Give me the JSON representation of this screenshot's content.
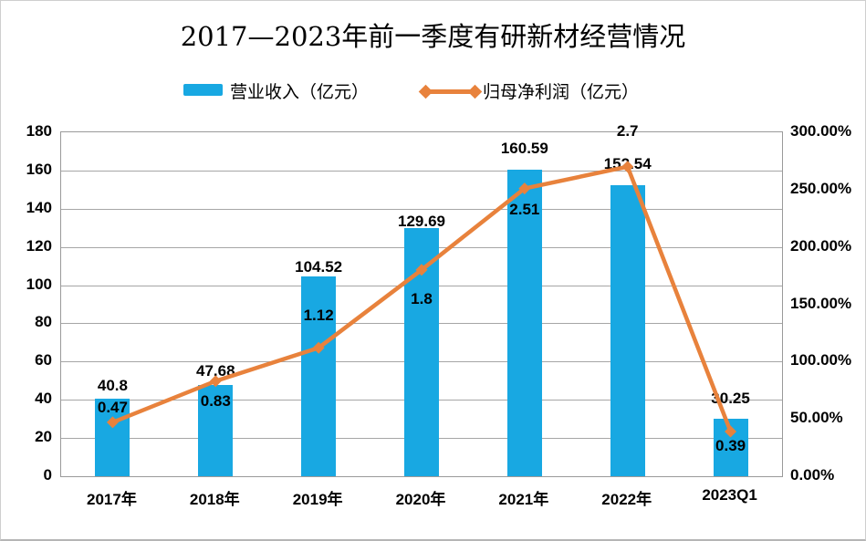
{
  "title": "2017—2023年前一季度有研新材经营情况",
  "chart_data": {
    "type": "bar",
    "subtype": "combo bar + line, dual axis",
    "title": "2017—2023年前一季度有研新材经营情况",
    "categories": [
      "2017年",
      "2018年",
      "2019年",
      "2020年",
      "2021年",
      "2022年",
      "2023Q1"
    ],
    "series": [
      {
        "name": "营业收入（亿元）",
        "type": "bar",
        "axis": "left",
        "color": "#18A8E2",
        "values": [
          40.8,
          47.68,
          104.52,
          129.69,
          160.59,
          152.54,
          30.25
        ],
        "data_labels": [
          "40.8",
          "47.68",
          "104.52",
          "129.69",
          "160.59",
          "152.54",
          "30.25"
        ]
      },
      {
        "name": "归母净利润（亿元）",
        "type": "line",
        "axis": "right",
        "color": "#E8823C",
        "marker": "diamond",
        "values": [
          0.47,
          0.83,
          1.12,
          1.8,
          2.51,
          2.7,
          0.39
        ],
        "data_labels": [
          "0.47",
          "0.83",
          "1.12",
          "1.8",
          "2.51",
          "2.7",
          "0.39"
        ],
        "right_axis_percent": [
          47,
          83,
          112,
          180,
          251,
          270,
          39
        ]
      }
    ],
    "left_axis": {
      "min": 0,
      "max": 180,
      "step": 20,
      "ticks": [
        "0",
        "20",
        "40",
        "60",
        "80",
        "100",
        "120",
        "140",
        "160",
        "180"
      ]
    },
    "right_axis": {
      "min": 0,
      "max": 300,
      "step": 50,
      "ticks": [
        "0.00%",
        "50.00%",
        "100.00%",
        "150.00%",
        "200.00%",
        "250.00%",
        "300.00%"
      ]
    },
    "grid": true,
    "legend_position": "top",
    "colors": {
      "bar": "#18A8E2",
      "line": "#E8823C",
      "gridline": "#A6A6A6",
      "text": "#000000",
      "background": "#FFFFFF"
    }
  }
}
